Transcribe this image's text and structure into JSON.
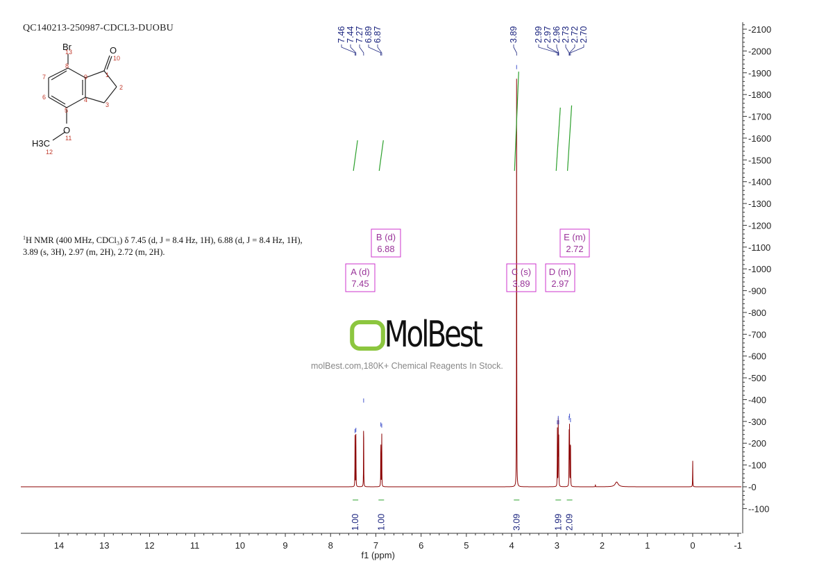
{
  "title": "QC140213-250987-CDCL3-DUOBU",
  "description": {
    "nucleus_sup": "1",
    "text": "H NMR (400 MHz, CDCl₃) δ 7.45 (d, J = 8.4 Hz, 1H), 6.88 (d, J = 8.4 Hz, 1H), 3.89 (s, 3H), 2.97 (m, 2H), 2.72 (m, 2H)."
  },
  "watermark": {
    "logo": "MolBest",
    "text": "molBest.com,180K+ Chemical Reagents In Stock."
  },
  "structure": {
    "atoms": [
      "Br",
      "O",
      "O",
      "H3C"
    ],
    "numbers": [
      "1",
      "2",
      "3",
      "4",
      "5",
      "6",
      "7",
      "8",
      "9",
      "10",
      "11",
      "12",
      "13"
    ]
  },
  "colors": {
    "spectrum": "#8b0000",
    "integral": "#2ca02c",
    "peak_label": "#1a237e",
    "multiplet": "#cc33cc",
    "axis": "#333333"
  },
  "chart_data": {
    "type": "line",
    "xlabel": "f1 (ppm)",
    "xlim": [
      14.84,
      -1.05
    ],
    "ylim": [
      -213,
      2130
    ],
    "x_reversed": true,
    "x_ticks": [
      "14",
      "13",
      "12",
      "11",
      "10",
      "9",
      "8",
      "7",
      "6",
      "5",
      "4",
      "3",
      "2",
      "1",
      "0",
      "-1"
    ],
    "y_ticks": [
      "-100",
      "0",
      "100",
      "200",
      "300",
      "400",
      "500",
      "600",
      "700",
      "800",
      "900",
      "1000",
      "1100",
      "1200",
      "1300",
      "1400",
      "1500",
      "1600",
      "1700",
      "1800",
      "1900",
      "2000",
      "2100"
    ],
    "peaks": [
      {
        "ppm": 7.46,
        "height": 240
      },
      {
        "ppm": 7.44,
        "height": 245
      },
      {
        "ppm": 7.27,
        "height": 380
      },
      {
        "ppm": 6.89,
        "height": 270
      },
      {
        "ppm": 6.87,
        "height": 265
      },
      {
        "ppm": 3.89,
        "height": 1910
      },
      {
        "ppm": 2.99,
        "height": 280
      },
      {
        "ppm": 2.97,
        "height": 300
      },
      {
        "ppm": 2.96,
        "height": 280
      },
      {
        "ppm": 2.73,
        "height": 300
      },
      {
        "ppm": 2.72,
        "height": 310
      },
      {
        "ppm": 2.7,
        "height": 290
      },
      {
        "ppm": 2.15,
        "height": 10
      },
      {
        "ppm": 1.68,
        "height": 22,
        "broad": true
      },
      {
        "ppm": 0.0,
        "height": 135
      }
    ],
    "peak_labels": [
      [
        "7.46",
        "7.44",
        "7.27",
        "6.89",
        "6.87"
      ],
      [
        "3.89"
      ],
      [
        "2.99",
        "2.97",
        "2.96",
        "2.73",
        "2.72",
        "2.70"
      ]
    ],
    "multiplets": [
      {
        "id": "A",
        "type": "d",
        "shift": "7.45",
        "integral": "1.00",
        "ppm": 7.45,
        "int_from": 1450,
        "int_to": 1590
      },
      {
        "id": "B",
        "type": "d",
        "shift": "6.88",
        "integral": "1.00",
        "ppm": 6.88,
        "int_from": 1450,
        "int_to": 1590
      },
      {
        "id": "C",
        "type": "s",
        "shift": "3.89",
        "integral": "3.09",
        "ppm": 3.89,
        "int_from": 1450,
        "int_to": 1905
      },
      {
        "id": "D",
        "type": "m",
        "shift": "2.97",
        "integral": "1.99",
        "ppm": 2.97,
        "int_from": 1450,
        "int_to": 1740
      },
      {
        "id": "E",
        "type": "m",
        "shift": "2.72",
        "integral": "2.09",
        "ppm": 2.72,
        "int_from": 1450,
        "int_to": 1750
      }
    ]
  }
}
